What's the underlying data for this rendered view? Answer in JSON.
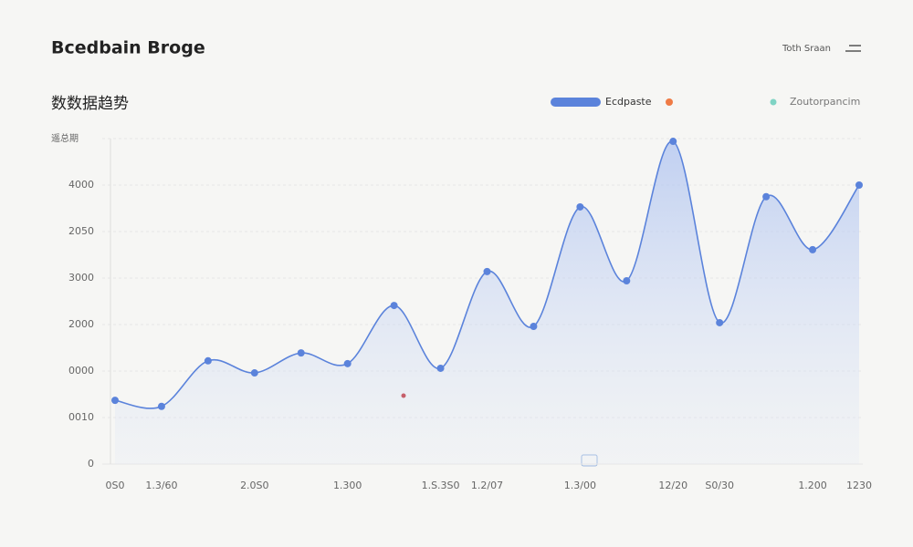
{
  "header": {
    "title": "Bcedbain Broge",
    "action": "Toth Sraan"
  },
  "chart_data": {
    "type": "line",
    "title": "数数据趋势",
    "ylabel": "遥总期",
    "categories": [
      "0S0",
      "1.3/60",
      null,
      "2.0S0",
      null,
      "1.300",
      null,
      "1.S.3S0",
      "1.2/07",
      null,
      "1.3/00",
      null,
      "12/20",
      "S0/30",
      null,
      "1.200",
      "1230"
    ],
    "series": [
      {
        "name": "Ecdpaste",
        "color": "#5b83db",
        "values": [
          1370,
          1240,
          2220,
          1960,
          2390,
          2160,
          3410,
          2060,
          4140,
          2960,
          5530,
          3940,
          6940,
          3040,
          5750,
          4610,
          6000
        ]
      }
    ],
    "legend_items": [
      "Zoutorpancim"
    ],
    "ylim": [
      0,
      7000
    ],
    "yticks": [
      0,
      {
        "value": 1000,
        "label": "0010"
      },
      {
        "value": 2000,
        "label": "0000"
      },
      {
        "value": 3000,
        "label": "2000"
      },
      {
        "value": 4000,
        "label": "3000"
      },
      {
        "value": 5000,
        "label": "2050"
      },
      {
        "value": 6000,
        "label": "4000"
      },
      {
        "value": 7000,
        "label": ""
      }
    ],
    "grid": true
  }
}
